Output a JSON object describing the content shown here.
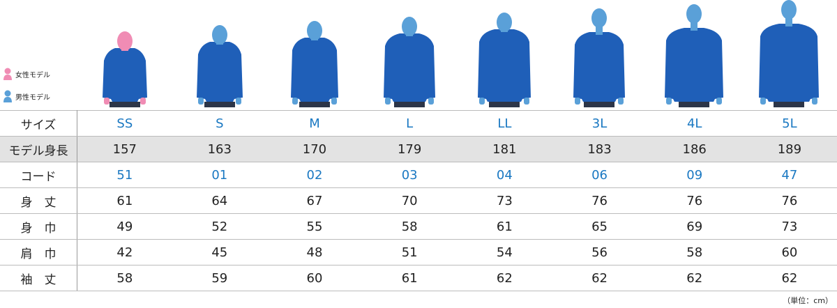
{
  "legend": [
    {
      "label": "女性モデル"
    },
    {
      "label": "男性モデル"
    }
  ],
  "table": {
    "rows": [
      [
        "サイズ",
        "SS",
        "S",
        "M",
        "L",
        "LL",
        "3L",
        "4L",
        "5L"
      ],
      [
        "モデル身長",
        157,
        163,
        170,
        179,
        181,
        183,
        186,
        189
      ],
      [
        "コード",
        "51",
        "01",
        "02",
        "03",
        "04",
        "06",
        "09",
        "47"
      ],
      [
        "身　丈",
        61,
        64,
        67,
        70,
        73,
        76,
        76,
        76
      ],
      [
        "身　巾",
        49,
        52,
        55,
        58,
        61,
        65,
        69,
        73
      ],
      [
        "肩　巾",
        42,
        45,
        48,
        51,
        54,
        56,
        58,
        60
      ],
      [
        "袖　丈",
        58,
        59,
        60,
        61,
        62,
        62,
        62,
        62
      ]
    ]
  },
  "note": "（単位：cm）"
}
